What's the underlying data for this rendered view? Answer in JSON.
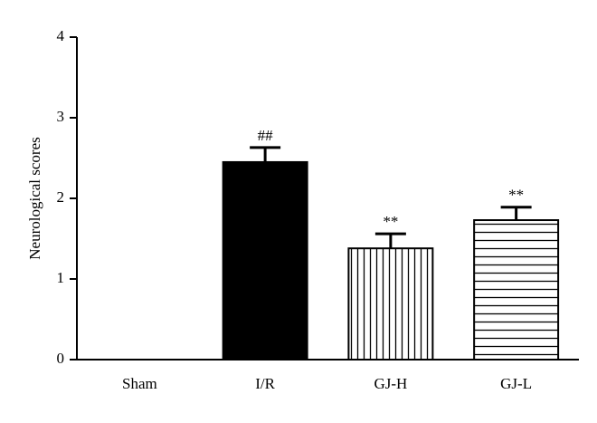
{
  "chart_data": {
    "type": "bar",
    "y_label": "Neurological scores",
    "categories": [
      "Sham",
      "I/R",
      "GJ-H",
      "GJ-L"
    ],
    "values": [
      0,
      2.45,
      1.38,
      1.73
    ],
    "errors": [
      0,
      0.18,
      0.18,
      0.16
    ],
    "annotations": [
      null,
      "##",
      "**",
      "**"
    ],
    "patterns": [
      "solid",
      "solid",
      "vertical",
      "horizontal"
    ],
    "color": "#000000",
    "ylim": [
      0,
      4
    ],
    "yticks": [
      0,
      1,
      2,
      3,
      4
    ],
    "grid": false
  }
}
